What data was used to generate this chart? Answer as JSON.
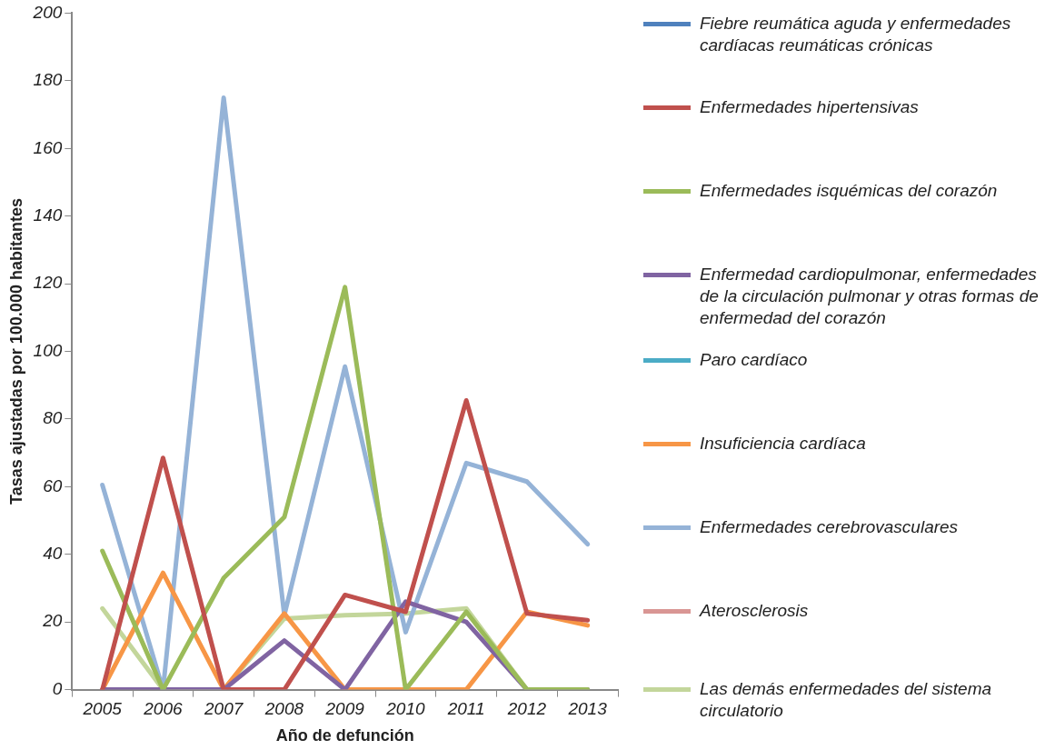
{
  "chart_data": {
    "type": "line",
    "xlabel": "Año de defunción",
    "ylabel": "Tasas ajustadas por 100.000 habitantes",
    "categories": [
      "2005",
      "2006",
      "2007",
      "2008",
      "2009",
      "2010",
      "2011",
      "2012",
      "2013"
    ],
    "ylim": [
      0,
      200
    ],
    "yticks": [
      0,
      20,
      40,
      60,
      80,
      100,
      120,
      140,
      160,
      180,
      200
    ],
    "grid": false,
    "legend": "right",
    "marker": "none",
    "line_style": "solid",
    "series": [
      {
        "name": "Fiebre reumática aguda y enfermedades cardíacas reumáticas crónicas",
        "color": "#4f81bd",
        "values": [
          null,
          null,
          null,
          null,
          null,
          null,
          null,
          null,
          null
        ]
      },
      {
        "name": "Enfermedades hipertensivas",
        "color": "#c0504d",
        "values": [
          0,
          68.5,
          0,
          0,
          28,
          23,
          85.5,
          22.5,
          20.5
        ]
      },
      {
        "name": "Enfermedades isquémicas del corazón",
        "color": "#9bbb59",
        "values": [
          41,
          0,
          33,
          51,
          119,
          0,
          23,
          0,
          0
        ]
      },
      {
        "name": "Enfermedad cardiopulmonar, enfermedades de la circulación pulmonar y otras formas de enfermedad del corazón",
        "color": "#8064a2",
        "values": [
          0,
          0,
          0,
          14.5,
          0,
          26,
          20,
          0,
          0
        ]
      },
      {
        "name": "Paro cardíaco",
        "color": "#4bacc6",
        "values": [
          null,
          null,
          null,
          null,
          null,
          null,
          null,
          null,
          null
        ]
      },
      {
        "name": "Insuficiencia cardíaca",
        "color": "#f79646",
        "values": [
          0,
          34.5,
          0,
          22.5,
          0,
          0,
          0,
          23,
          19
        ]
      },
      {
        "name": "Enfermedades cerebrovasculares",
        "color": "#95b3d7",
        "values": [
          60.5,
          0,
          175,
          22,
          95.5,
          17,
          67,
          61.5,
          43
        ]
      },
      {
        "name": "Aterosclerosis",
        "color": "#d99694",
        "values": [
          null,
          null,
          null,
          null,
          null,
          null,
          null,
          null,
          null
        ]
      },
      {
        "name": "Las demás enfermedades del sistema circulatorio",
        "color": "#c3d69b",
        "values": [
          24,
          0,
          0,
          21,
          22,
          22.5,
          24,
          0,
          0
        ]
      }
    ]
  }
}
